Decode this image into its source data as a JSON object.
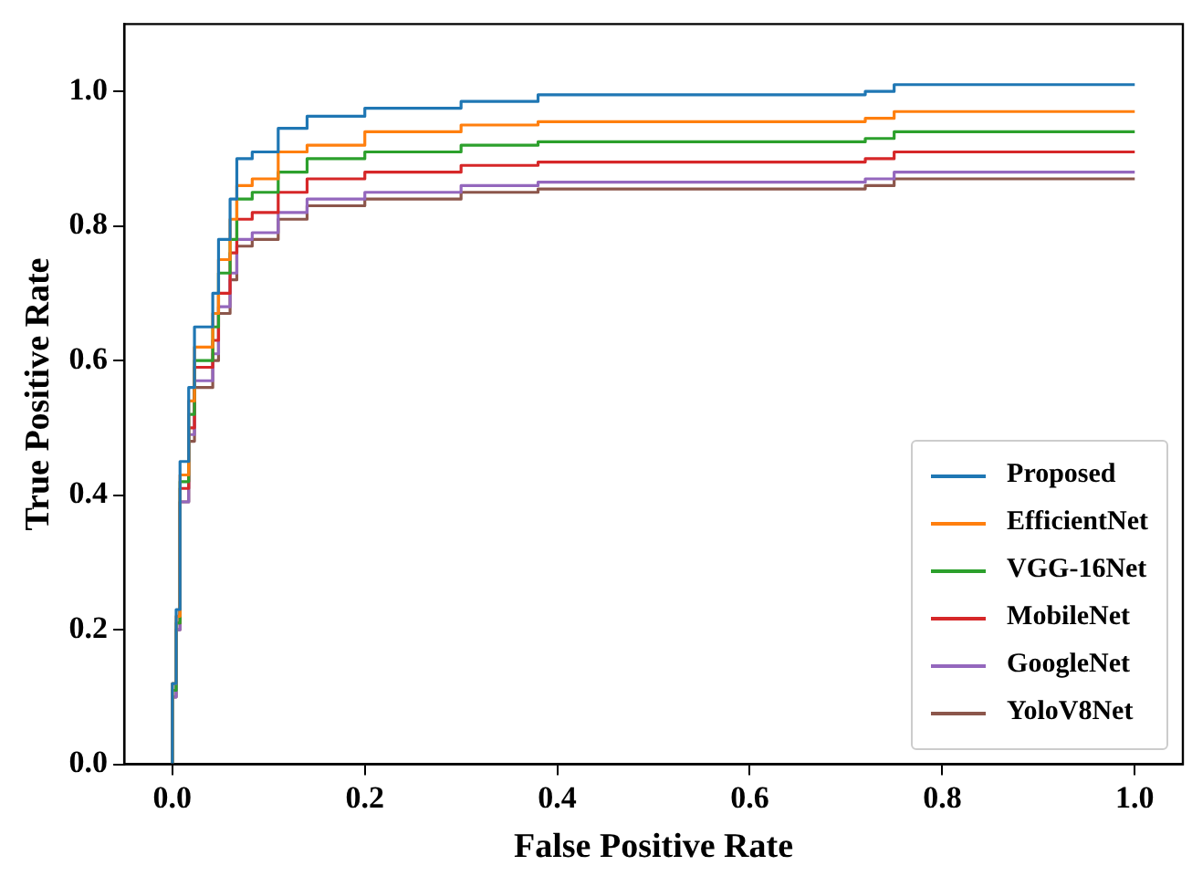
{
  "chart_data": {
    "type": "step",
    "xlabel": "False Positive Rate",
    "ylabel": "True Positive Rate",
    "x": [
      0,
      0,
      0.004,
      0.008,
      0.017,
      0.023,
      0.042,
      0.048,
      0.06,
      0.067,
      0.083,
      0.11,
      0.14,
      0.2,
      0.3,
      0.38,
      0.5,
      0.6,
      0.72,
      0.75,
      1.0
    ],
    "series": [
      {
        "name": "Proposed",
        "color": "#1f77b4",
        "values": [
          0,
          0.12,
          0.23,
          0.45,
          0.56,
          0.65,
          0.7,
          0.78,
          0.84,
          0.9,
          0.91,
          0.945,
          0.963,
          0.975,
          0.985,
          0.995,
          0.995,
          0.995,
          1.0,
          1.01,
          1.01
        ]
      },
      {
        "name": "EfficientNet",
        "color": "#ff7f0e",
        "values": [
          0,
          0.12,
          0.22,
          0.43,
          0.54,
          0.62,
          0.67,
          0.75,
          0.81,
          0.86,
          0.87,
          0.91,
          0.92,
          0.94,
          0.95,
          0.955,
          0.955,
          0.955,
          0.96,
          0.97,
          0.97
        ]
      },
      {
        "name": "VGG-16Net",
        "color": "#2ca02c",
        "values": [
          0,
          0.11,
          0.21,
          0.42,
          0.52,
          0.6,
          0.65,
          0.73,
          0.78,
          0.84,
          0.85,
          0.88,
          0.9,
          0.91,
          0.92,
          0.925,
          0.925,
          0.925,
          0.93,
          0.94,
          0.94
        ]
      },
      {
        "name": "MobileNet",
        "color": "#d62728",
        "values": [
          null,
          null,
          0.21,
          0.41,
          0.5,
          0.59,
          0.63,
          0.7,
          0.76,
          0.81,
          0.82,
          0.85,
          0.87,
          0.88,
          0.89,
          0.895,
          0.895,
          0.895,
          0.9,
          0.91,
          0.91
        ]
      },
      {
        "name": "GoogleNet",
        "color": "#9467bd",
        "values": [
          0,
          0.1,
          0.2,
          0.39,
          0.49,
          0.57,
          0.61,
          0.68,
          0.73,
          0.78,
          0.79,
          0.82,
          0.84,
          0.85,
          0.86,
          0.865,
          0.865,
          0.865,
          0.87,
          0.88,
          0.88
        ]
      },
      {
        "name": "YoloV8Net",
        "color": "#8c564b",
        "values": [
          0,
          0.1,
          0.2,
          0.39,
          0.48,
          0.56,
          0.6,
          0.67,
          0.72,
          0.77,
          0.78,
          0.81,
          0.83,
          0.84,
          0.85,
          0.855,
          0.855,
          0.855,
          0.86,
          0.87,
          0.87
        ]
      }
    ],
    "xlim": [
      -0.05,
      1.05
    ],
    "xticks": [
      {
        "value": 0,
        "label": "0.0"
      },
      0.2,
      0.4,
      0.6,
      0.8,
      {
        "value": 1,
        "label": "1.0"
      }
    ],
    "ylim": [
      0,
      1.1
    ],
    "yticks": [
      {
        "value": 0,
        "label": "0.0"
      },
      0.2,
      0.4,
      0.6,
      0.8,
      {
        "value": 1,
        "label": "1.0"
      }
    ],
    "grid": false,
    "legend": "bottom right",
    "marker": "none",
    "line_style": "solid"
  }
}
